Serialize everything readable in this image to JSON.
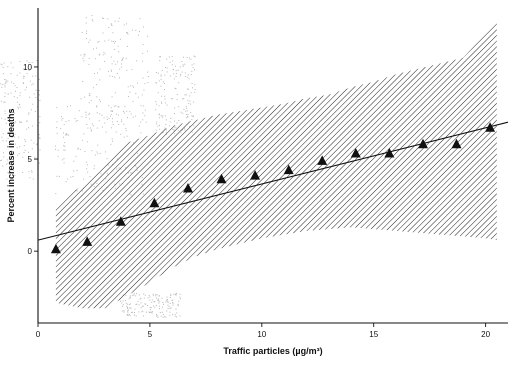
{
  "chart_data": {
    "type": "scatter",
    "title": "",
    "xlabel": "Traffic particles (µg/m³)",
    "ylabel": "Percent increase in deaths",
    "xlim": [
      0,
      21
    ],
    "ylim": [
      -3.9,
      13.2
    ],
    "x_ticks": [
      0,
      5,
      10,
      15,
      20
    ],
    "y_ticks": [
      0,
      5,
      10
    ],
    "grid": false,
    "legend": "none",
    "colors": {
      "marker": "#111111",
      "band": "#222222",
      "speckle": "#b8b8b8",
      "axis": "#111111"
    },
    "series": [
      {
        "marker": "triangle",
        "x": [
          0.8,
          2.2,
          3.7,
          5.2,
          6.7,
          8.2,
          9.7,
          11.2,
          12.7,
          14.2,
          15.7,
          17.2,
          18.7,
          20.2
        ],
        "y": [
          0.1,
          0.5,
          1.6,
          2.6,
          3.4,
          3.9,
          4.1,
          4.4,
          4.9,
          5.3,
          5.3,
          5.8,
          5.8,
          6.7
        ]
      }
    ],
    "fit_line": {
      "x": [
        0,
        21
      ],
      "y": [
        0.6,
        7.0
      ]
    },
    "confidence_band": {
      "x": [
        0.8,
        2.0,
        3.0,
        4.0,
        5.0,
        6.0,
        7.0,
        8.0,
        9.0,
        10.0,
        11.0,
        12.0,
        13.0,
        14.0,
        15.0,
        16.0,
        17.0,
        18.0,
        19.0,
        20.0,
        20.5
      ],
      "upper": [
        2.5,
        3.6,
        4.7,
        5.9,
        6.3,
        6.8,
        7.1,
        7.4,
        7.6,
        7.8,
        8.0,
        8.3,
        8.5,
        8.9,
        9.2,
        9.6,
        9.9,
        10.2,
        10.5,
        11.8,
        12.4
      ],
      "lower": [
        -2.8,
        -3.1,
        -3.1,
        -2.4,
        -1.7,
        -0.9,
        -0.3,
        0.1,
        0.4,
        0.7,
        0.9,
        1.1,
        1.2,
        1.3,
        1.2,
        1.1,
        1.0,
        0.9,
        0.8,
        0.7,
        0.6
      ]
    }
  }
}
